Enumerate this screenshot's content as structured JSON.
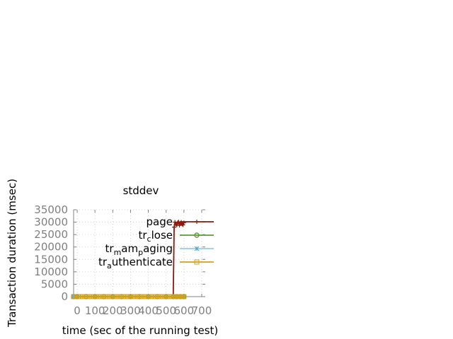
{
  "chart_data": {
    "type": "line",
    "title": "stddev",
    "xlabel": "time (sec of the running test)",
    "ylabel": "Transaction duration (msec)",
    "xlim": [
      -20,
      720
    ],
    "ylim": [
      0,
      35000
    ],
    "xticks": [
      0,
      100,
      200,
      300,
      400,
      500,
      600,
      700
    ],
    "yticks": [
      0,
      5000,
      10000,
      15000,
      20000,
      25000,
      30000,
      35000
    ],
    "grid": true,
    "legend_position": "top-right",
    "series": [
      {
        "name": "page",
        "legend_parts": [
          "page"
        ],
        "color": "#8b1a0e",
        "marker": "plus",
        "x": [
          -20,
          540,
          545,
          550,
          555,
          560,
          565,
          570,
          575,
          580,
          585,
          590,
          595,
          600
        ],
        "y": [
          0,
          0,
          28000,
          30000,
          29200,
          28800,
          29800,
          30100,
          28700,
          29500,
          30000,
          29200,
          28900,
          29800
        ]
      },
      {
        "name": "tr_close",
        "legend_parts": [
          "tr",
          "c",
          "lose"
        ],
        "color": "#5e9c36",
        "marker": "circle",
        "x": [
          -20,
          0,
          50,
          100,
          150,
          200,
          250,
          300,
          350,
          400,
          450,
          500,
          540,
          560,
          580,
          600
        ],
        "y": [
          0,
          0,
          0,
          0,
          0,
          0,
          0,
          0,
          0,
          0,
          0,
          0,
          0,
          0,
          0,
          0
        ]
      },
      {
        "name": "tr_mam_paging",
        "legend_parts": [
          "tr",
          "m",
          "am",
          "p",
          "aging"
        ],
        "color": "#4ea3d8",
        "marker": "star",
        "x": [
          -20,
          0,
          100,
          200,
          300,
          400,
          500,
          540,
          560,
          580,
          600
        ],
        "y": [
          0,
          0,
          0,
          0,
          0,
          0,
          0,
          0,
          0,
          0,
          0
        ]
      },
      {
        "name": "tr_authenticate",
        "legend_parts": [
          "tr",
          "a",
          "uthenticate"
        ],
        "color": "#d4a017",
        "marker": "square",
        "x": [
          -20,
          -10,
          0,
          10,
          20,
          30,
          40,
          50,
          60,
          70,
          80,
          90,
          100,
          110,
          120,
          130,
          140,
          150,
          160,
          170,
          180,
          190,
          200,
          210,
          220,
          230,
          240,
          250,
          260,
          270,
          280,
          290,
          300,
          310,
          320,
          330,
          340,
          350,
          360,
          370,
          380,
          390,
          400,
          410,
          420,
          430,
          440,
          450,
          460,
          470,
          480,
          490,
          500,
          510,
          520,
          530,
          540,
          550,
          555,
          560,
          565,
          570,
          575,
          580,
          585,
          590,
          595,
          600
        ],
        "y": [
          0,
          0,
          0,
          0,
          0,
          0,
          0,
          0,
          0,
          0,
          0,
          0,
          0,
          0,
          0,
          0,
          0,
          0,
          0,
          0,
          0,
          0,
          0,
          0,
          0,
          0,
          0,
          0,
          0,
          0,
          0,
          0,
          0,
          0,
          0,
          0,
          0,
          0,
          0,
          0,
          0,
          0,
          0,
          0,
          0,
          0,
          0,
          0,
          0,
          0,
          0,
          0,
          0,
          0,
          0,
          0,
          0,
          0,
          0,
          0,
          0,
          0,
          0,
          0,
          0,
          0,
          0,
          0
        ]
      }
    ]
  }
}
